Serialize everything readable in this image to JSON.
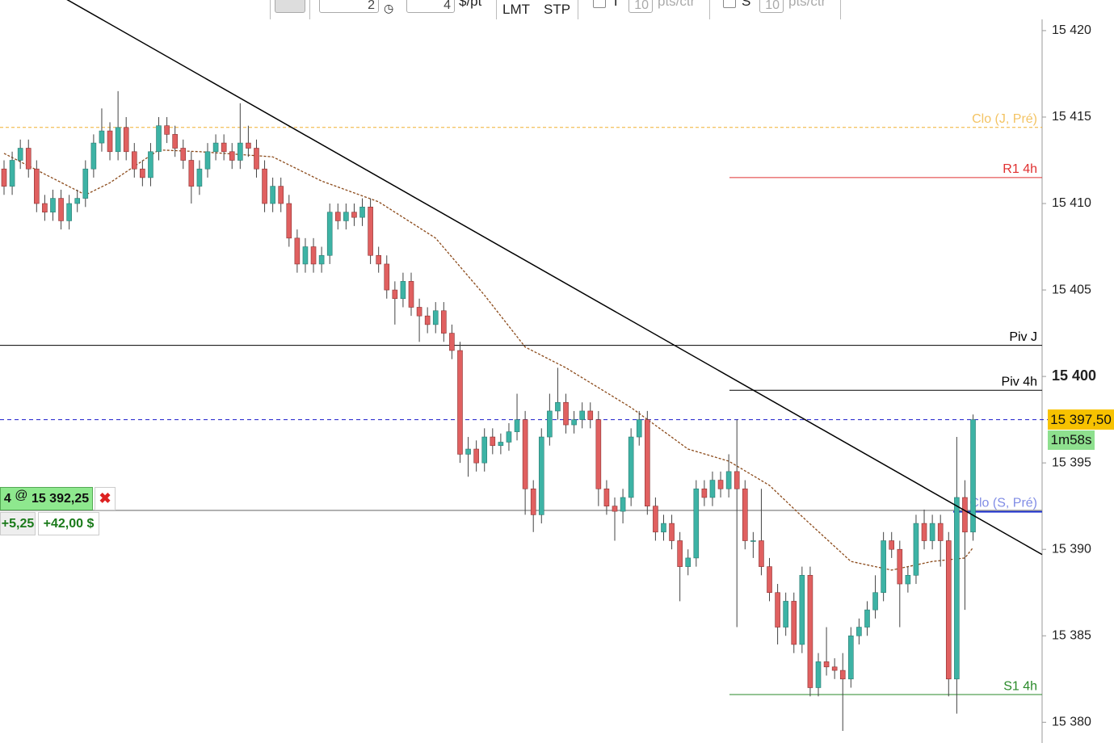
{
  "toolbar": {
    "quantity": 2,
    "multiplier": 4,
    "unit": "$/pt",
    "order_types": [
      "LMT",
      "STP"
    ],
    "take_profit": {
      "label": "T",
      "value": 10,
      "unit": "pts/ctr"
    },
    "stop_loss": {
      "label": "S",
      "value": 10,
      "unit": "pts/ctr"
    }
  },
  "chart_data": {
    "type": "candlestick",
    "open": [
      15412.0,
      15411.0,
      15412.5,
      15413.2,
      15412.0,
      15410.0,
      15409.5,
      15410.3,
      15409.0,
      15410.0,
      15410.3,
      15412.0,
      15413.5,
      15414.2,
      15413.0,
      15414.4,
      15413.0,
      15412.0,
      15411.5,
      15413.0,
      15414.5,
      15414.0,
      15413.2,
      15412.5,
      15411.0,
      15412.0,
      15413.0,
      15413.5,
      15413.0,
      15412.5,
      15413.5,
      15413.2,
      15412.0,
      15410.0,
      15411.0,
      15410.0,
      15408.0,
      15406.5,
      15407.5,
      15406.5,
      15407.0,
      15409.5,
      15409.0,
      15409.5,
      15409.2,
      15409.8,
      15407.0,
      15406.5,
      15405.0,
      15404.5,
      15405.5,
      15404.0,
      15403.5,
      15403.0,
      15403.8,
      15402.5,
      15401.5,
      15395.5,
      15395.8,
      15395.0,
      15396.5,
      15396.0,
      15396.2,
      15396.8,
      15397.5,
      15393.5,
      15392.0,
      15396.5,
      15398.0,
      15398.5,
      15397.2,
      15397.5,
      15398.0,
      15397.5,
      15393.5,
      15392.5,
      15392.2,
      15393.0,
      15396.5,
      15397.5,
      15392.5,
      15391.0,
      15391.5,
      15390.5,
      15389.0,
      15389.5,
      15393.5,
      15393.0,
      15394.0,
      15393.5,
      15394.5,
      15393.5,
      15390.5,
      15390.5,
      15389.0,
      15387.5,
      15385.5,
      15387.0,
      15384.5,
      15388.5,
      15382.0,
      15383.5,
      15383.2,
      15383.0,
      15382.5,
      15385.0,
      15385.5,
      15386.5,
      15387.5,
      15390.5,
      15390.0,
      15388.0,
      15388.5,
      15391.5,
      15390.5,
      15391.5,
      15390.5,
      15382.5,
      15393.0,
      15391.0
    ],
    "high": [
      15412.5,
      15413.0,
      15413.7,
      15413.7,
      15412.5,
      15410.5,
      15410.8,
      15410.8,
      15410.5,
      15410.8,
      15412.5,
      15414.0,
      15415.5,
      15414.7,
      15416.5,
      15415.0,
      15413.5,
      15412.5,
      15413.5,
      15415.0,
      15415.0,
      15414.5,
      15413.7,
      15413.0,
      15412.5,
      15413.5,
      15414.0,
      15414.0,
      15413.5,
      15415.8,
      15414.5,
      15413.7,
      15412.5,
      15411.5,
      15411.5,
      15410.5,
      15408.5,
      15408.0,
      15408.0,
      15407.5,
      15410.0,
      15410.0,
      15410.0,
      15410.0,
      15410.3,
      15410.3,
      15407.5,
      15407.0,
      15405.5,
      15406.0,
      15406.0,
      15404.5,
      15404.0,
      15404.3,
      15404.3,
      15403.0,
      15402.0,
      15396.5,
      15396.3,
      15397.0,
      15397.0,
      15396.7,
      15397.3,
      15399.0,
      15398.0,
      15394.0,
      15397.0,
      15399.0,
      15400.5,
      15399.0,
      15398.0,
      15398.5,
      15398.5,
      15398.0,
      15394.0,
      15393.0,
      15393.5,
      15397.0,
      15398.0,
      15398.0,
      15393.0,
      15392.0,
      15392.0,
      15391.0,
      15390.0,
      15394.0,
      15394.0,
      15394.5,
      15394.5,
      15395.5,
      15397.5,
      15394.0,
      15391.0,
      15393.5,
      15389.5,
      15388.0,
      15387.5,
      15387.5,
      15389.0,
      15389.0,
      15384.0,
      15385.5,
      15383.7,
      15384.0,
      15385.5,
      15386.0,
      15387.0,
      15388.5,
      15391.0,
      15391.0,
      15390.5,
      15389.0,
      15392.0,
      15392.3,
      15392.0,
      15392.0,
      15391.0,
      15396.5,
      15394.0,
      15397.8
    ],
    "low": [
      15410.5,
      15410.5,
      15412.0,
      15411.5,
      15409.5,
      15409.0,
      15409.0,
      15408.5,
      15408.5,
      15409.5,
      15409.8,
      15411.5,
      15413.0,
      15412.5,
      15412.5,
      15412.5,
      15411.5,
      15411.0,
      15411.0,
      15412.5,
      15413.5,
      15412.7,
      15412.0,
      15410.0,
      15410.5,
      15411.5,
      15412.5,
      15412.5,
      15412.0,
      15412.0,
      15412.7,
      15411.5,
      15409.5,
      15409.5,
      15409.5,
      15407.5,
      15406.0,
      15406.0,
      15406.0,
      15406.0,
      15406.5,
      15408.5,
      15408.5,
      15408.7,
      15408.7,
      15406.5,
      15406.0,
      15404.5,
      15403.0,
      15404.0,
      15403.5,
      15402.0,
      15402.5,
      15402.5,
      15402.0,
      15401.0,
      15395.0,
      15394.2,
      15394.5,
      15394.5,
      15395.5,
      15395.5,
      15395.7,
      15396.3,
      15392.0,
      15391.0,
      15391.5,
      15396.0,
      15397.5,
      15396.7,
      15396.7,
      15397.0,
      15397.0,
      15392.5,
      15392.0,
      15390.5,
      15391.5,
      15392.5,
      15396.0,
      15392.0,
      15390.5,
      15390.5,
      15390.0,
      15387.0,
      15388.5,
      15389.0,
      15392.5,
      15392.5,
      15393.0,
      15393.0,
      15385.5,
      15390.0,
      15389.5,
      15388.5,
      15387.0,
      15384.5,
      15385.0,
      15384.0,
      15384.0,
      15381.5,
      15381.5,
      15382.7,
      15382.5,
      15379.5,
      15382.0,
      15384.5,
      15385.0,
      15386.0,
      15387.0,
      15389.5,
      15385.5,
      15387.5,
      15388.0,
      15390.0,
      15390.0,
      15389.0,
      15381.5,
      15380.5,
      15386.5,
      15390.5
    ],
    "close": [
      15411.0,
      15412.5,
      15413.2,
      15412.0,
      15410.0,
      15409.5,
      15410.3,
      15409.0,
      15410.0,
      15410.3,
      15412.0,
      15413.5,
      15414.2,
      15413.0,
      15414.4,
      15413.0,
      15412.0,
      15411.5,
      15413.0,
      15414.5,
      15414.0,
      15413.2,
      15412.5,
      15411.0,
      15412.0,
      15413.0,
      15413.5,
      15413.0,
      15412.5,
      15413.5,
      15413.2,
      15412.0,
      15410.0,
      15411.0,
      15410.0,
      15408.0,
      15406.5,
      15407.5,
      15406.5,
      15407.0,
      15409.5,
      15409.0,
      15409.5,
      15409.2,
      15409.8,
      15407.0,
      15406.5,
      15405.0,
      15404.5,
      15405.5,
      15404.0,
      15403.5,
      15403.0,
      15403.8,
      15402.5,
      15401.5,
      15395.5,
      15395.8,
      15395.0,
      15396.5,
      15396.0,
      15396.2,
      15396.8,
      15397.5,
      15393.5,
      15392.0,
      15396.5,
      15398.0,
      15398.5,
      15397.2,
      15397.5,
      15398.0,
      15397.5,
      15393.5,
      15392.5,
      15392.2,
      15393.0,
      15396.5,
      15397.5,
      15392.5,
      15391.0,
      15391.5,
      15390.5,
      15389.0,
      15389.5,
      15393.5,
      15393.0,
      15394.0,
      15393.5,
      15394.5,
      15393.5,
      15390.5,
      15390.5,
      15389.0,
      15387.5,
      15385.5,
      15387.0,
      15384.5,
      15388.5,
      15382.0,
      15383.5,
      15383.2,
      15383.0,
      15382.5,
      15385.0,
      15385.5,
      15386.5,
      15387.5,
      15390.5,
      15390.0,
      15388.0,
      15388.5,
      15391.5,
      15390.5,
      15391.5,
      15390.5,
      15382.5,
      15393.0,
      15391.0,
      15397.5
    ],
    "up_color": "#3db3a5",
    "down_color": "#e06060",
    "moving_average": {
      "color": "#8b4a1a",
      "x": [
        0,
        10,
        13,
        19,
        24,
        33,
        39,
        46,
        53,
        59,
        64,
        69,
        77,
        84,
        89,
        94,
        98,
        104,
        109,
        114,
        118,
        119
      ],
      "values": [
        15412.9,
        15410.5,
        15411.2,
        15413.1,
        15413.0,
        15412.7,
        15411.3,
        15410.1,
        15408.0,
        15404.7,
        15401.7,
        15400.5,
        15398.2,
        15395.8,
        15395.1,
        15393.7,
        15391.9,
        15389.3,
        15388.8,
        15389.3,
        15389.5,
        15390.1
      ]
    },
    "trendline": {
      "color": "#000000",
      "values": [
        15424.0,
        15389.7
      ]
    },
    "levels": [
      {
        "name": "Clo (J, Pré)",
        "value": 15414.4,
        "color": "#f0b030",
        "style": "dashed"
      },
      {
        "name": "R1 4h",
        "value": 15411.5,
        "color": "#e03030",
        "style": "solid"
      },
      {
        "name": "Piv J",
        "value": 15401.8,
        "color": "#000000",
        "style": "solid"
      },
      {
        "name": "Piv 4h",
        "value": 15399.2,
        "color": "#000000",
        "style": "solid"
      },
      {
        "name": "Clo (S, Pré)",
        "value": 15392.2,
        "color": "#1a2fd0",
        "style": "solid"
      },
      {
        "name": "S1 4h",
        "value": 15381.6,
        "color": "#2a8a2a",
        "style": "solid"
      }
    ],
    "last_price": {
      "value": 15397.5,
      "label": "15 397,50",
      "color": "#1a1acc"
    },
    "timer": "1m58s",
    "position": {
      "quantity": 4,
      "at": "@",
      "price": {
        "value": 15392.25,
        "label": "15 392,25"
      },
      "points": "+5,25",
      "pnl": "+42,00 $"
    },
    "ylim": [
      15378.8,
      15420.65
    ],
    "yticks": [
      {
        "value": 15380,
        "label": "15 380"
      },
      {
        "value": 15385,
        "label": "15 385"
      },
      {
        "value": 15390,
        "label": "15 390"
      },
      {
        "value": 15395,
        "label": "15 395"
      },
      {
        "value": 15400,
        "label": "15 400"
      },
      {
        "value": 15405,
        "label": "15 405"
      },
      {
        "value": 15410,
        "label": "15 410"
      },
      {
        "value": 15415,
        "label": "15 415"
      },
      {
        "value": 15420,
        "label": "15 420"
      }
    ]
  }
}
